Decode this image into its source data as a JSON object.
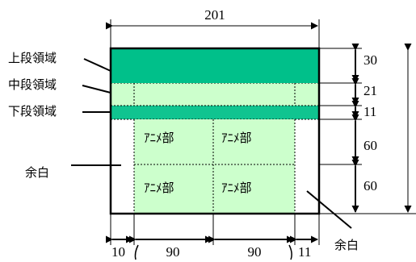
{
  "dimensions": {
    "total_width": "201",
    "height_upper": "30",
    "height_middle": "21",
    "height_lower": "11",
    "height_row1": "60",
    "height_row2": "60",
    "margin_left": "10",
    "col1": "90",
    "col2": "90",
    "margin_right": "11"
  },
  "labels": {
    "upper": "上段領域",
    "middle": "中段領域",
    "lower": "下段領域",
    "margin_left": "余白",
    "margin_bottom_right": "余白"
  },
  "cells": [
    "ｱﾆﾒ部",
    "ｱﾆﾒ部",
    "ｱﾆﾒ部",
    "ｱﾆﾒ部"
  ],
  "colors": {
    "upper_band": "#00c08a",
    "lower_band": "#10c490",
    "light_fill": "#ccffcc"
  }
}
